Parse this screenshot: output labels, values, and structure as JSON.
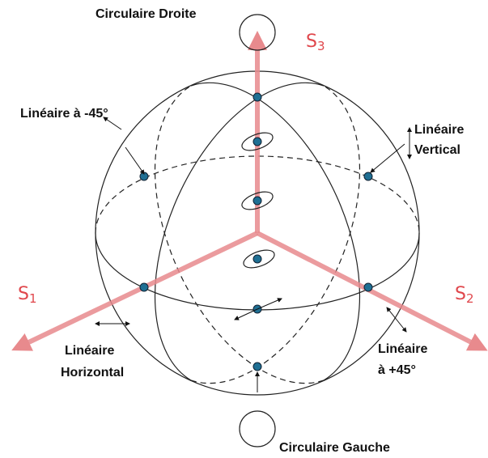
{
  "axes": [
    {
      "symbol": "S",
      "subscript": "1"
    },
    {
      "symbol": "S",
      "subscript": "2"
    },
    {
      "symbol": "S",
      "subscript": "3"
    }
  ],
  "labels": {
    "right_circular": "Circulaire Droite",
    "left_circular": "Circulaire Gauche",
    "linear_minus45": "Linéaire à -45°",
    "linear_vertical": [
      "Linéaire",
      "Vertical"
    ],
    "linear_horizontal": [
      "Linéaire",
      "Horizontal"
    ],
    "linear_plus45": [
      "Linéaire",
      "à +45°"
    ]
  }
}
